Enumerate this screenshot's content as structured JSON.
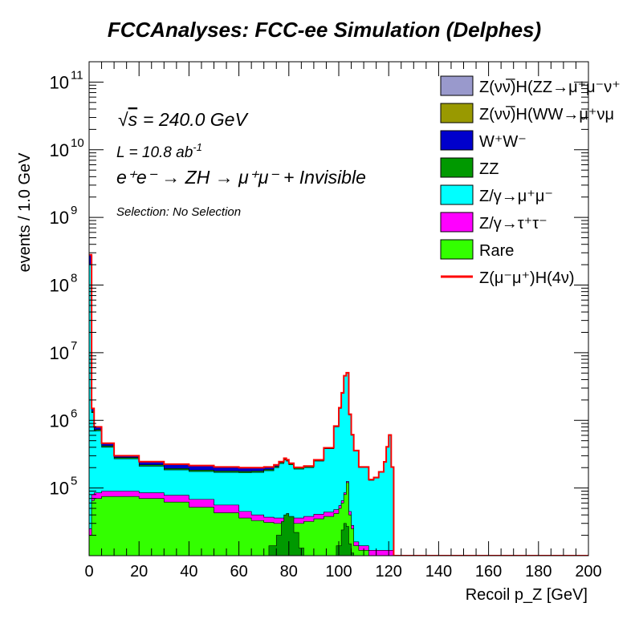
{
  "chart_data": {
    "type": "area",
    "title": "FCCAnalyses: FCC-ee Simulation (Delphes)",
    "xlabel": "Recoil p_Z [GeV]",
    "ylabel": "events / 1.0 GeV",
    "xlim": [
      0,
      200
    ],
    "ylim": [
      10000,
      200000000000
    ],
    "y_scale": "log",
    "grid": false,
    "legend_position": "top-right",
    "annotations": {
      "sqrt_s": "= 240.0 GeV",
      "lumi": "L = 10.8 ab",
      "lumi_exp": "-1",
      "process": "e⁺e⁻ → ZH → μ⁺μ⁻ + Invisible",
      "selection": "Selection: No Selection"
    },
    "x_ticks": [
      "0",
      "20",
      "40",
      "60",
      "80",
      "100",
      "120",
      "140",
      "160",
      "180",
      "200"
    ],
    "y_ticks": [
      {
        "base": "10",
        "exp": "5",
        "value": 100000
      },
      {
        "base": "10",
        "exp": "6",
        "value": 1000000
      },
      {
        "base": "10",
        "exp": "7",
        "value": 10000000
      },
      {
        "base": "10",
        "exp": "8",
        "value": 100000000
      },
      {
        "base": "10",
        "exp": "9",
        "value": 1000000000
      },
      {
        "base": "10",
        "exp": "10",
        "value": 10000000000
      },
      {
        "base": "10",
        "exp": "11",
        "value": 100000000000
      }
    ],
    "x": [
      0,
      1,
      2,
      5,
      10,
      20,
      30,
      40,
      50,
      60,
      65,
      70,
      74,
      76,
      78,
      79,
      80,
      82,
      86,
      90,
      94,
      98,
      100,
      101,
      102,
      103,
      104,
      105,
      106,
      108,
      112,
      114,
      116,
      118,
      119,
      120,
      121,
      122,
      123,
      130,
      200
    ],
    "series": [
      {
        "name": "Rare",
        "color": "#33ff00",
        "values": [
          20000,
          65000,
          70000,
          75000,
          75000,
          70000,
          62000,
          52000,
          43000,
          36000,
          33000,
          31000,
          30000,
          30000,
          30000,
          30000,
          30000,
          30000,
          32000,
          35000,
          38000,
          42000,
          50000,
          60000,
          80000,
          120000,
          40000,
          25000,
          14000,
          12000,
          10000,
          10000,
          10000,
          10000,
          10000,
          10000,
          10000,
          10000,
          10000,
          10000,
          10000
        ]
      },
      {
        "name": "Z/γ→τ⁺τ⁻",
        "color": "#ff00ff",
        "values": [
          25000,
          80000,
          85000,
          90000,
          90000,
          85000,
          78000,
          68000,
          56000,
          45000,
          40000,
          37000,
          36000,
          36000,
          36000,
          36000,
          36000,
          36000,
          38000,
          41000,
          44000,
          48000,
          55000,
          65000,
          85000,
          125000,
          45000,
          28000,
          16000,
          14000,
          12000,
          12000,
          12000,
          12000,
          12000,
          12000,
          12000,
          10000,
          10000,
          10000,
          10000
        ]
      },
      {
        "name": "Z/γ→μ⁺μ⁻",
        "color": "#00ffff",
        "values": [
          200000000,
          1300000,
          700000,
          400000,
          270000,
          210000,
          185000,
          175000,
          170000,
          168000,
          170000,
          180000,
          200000,
          230000,
          260000,
          250000,
          220000,
          190000,
          200000,
          250000,
          380000,
          800000,
          1500000,
          2500000,
          4500000,
          5000000,
          1200000,
          600000,
          350000,
          200000,
          130000,
          140000,
          170000,
          240000,
          400000,
          600000,
          200000,
          10000,
          10000,
          10000,
          10000
        ]
      },
      {
        "name": "ZZ",
        "color": "#009900",
        "values": [
          200000000,
          1350000,
          730000,
          420000,
          282000,
          220000,
          194000,
          184000,
          178000,
          176000,
          178000,
          188000,
          208000,
          238000,
          268000,
          258000,
          228000,
          198000,
          208000,
          258000,
          390000,
          820000,
          1530000,
          2550000,
          4550000,
          5050000,
          1220000,
          610000,
          355000,
          203000,
          132000,
          142000,
          172000,
          243000,
          405000,
          605000,
          203000,
          10000,
          10000,
          10000,
          10000
        ]
      },
      {
        "name": "W⁺W⁻",
        "color": "#0000cc",
        "values": [
          280000000,
          1500000,
          800000,
          460000,
          300000,
          245000,
          225000,
          215000,
          205000,
          200000,
          200000,
          205000,
          220000,
          245000,
          275000,
          262000,
          232000,
          202000,
          211000,
          261000,
          393000,
          823000,
          1535000,
          2560000,
          4560000,
          5060000,
          1230000,
          615000,
          358000,
          205000,
          133000,
          143000,
          173000,
          244000,
          407000,
          607000,
          204000,
          10000,
          10000,
          10000,
          10000
        ]
      },
      {
        "name": "Z(νν̅)H(WW→μ⁺νμ⁻ν)",
        "color": "#999900",
        "values": [
          280000000,
          1500000,
          800000,
          460000,
          300000,
          245000,
          225000,
          215000,
          205000,
          200000,
          200000,
          205000,
          220000,
          245000,
          275000,
          262000,
          232000,
          202000,
          211000,
          261000,
          393000,
          823000,
          1535000,
          2560000,
          4560000,
          5060000,
          1230000,
          615000,
          358000,
          205000,
          133000,
          143000,
          173000,
          244000,
          407000,
          607000,
          204000,
          10000,
          10000,
          10000,
          10000
        ]
      },
      {
        "name": "Z(νν̅)H(ZZ→μ⁺μ⁻νν)",
        "color": "#9999cc",
        "values": [
          280000000,
          1500000,
          800000,
          460000,
          300000,
          245000,
          225000,
          215000,
          205000,
          200000,
          200000,
          205000,
          220000,
          245000,
          275000,
          262000,
          232000,
          202000,
          211000,
          261000,
          393000,
          823000,
          1535000,
          2560000,
          4560000,
          5060000,
          1230000,
          615000,
          358000,
          205000,
          133000,
          143000,
          173000,
          244000,
          407000,
          607000,
          204000,
          10000,
          10000,
          10000,
          10000
        ]
      },
      {
        "name": "Z(μ⁻μ⁺)H(4ν)",
        "color": "#ff0000",
        "style": "line",
        "values": [
          280000000,
          1500000,
          800000,
          460000,
          300000,
          245000,
          225000,
          215000,
          205000,
          200000,
          200000,
          205000,
          220000,
          245000,
          275000,
          262000,
          232000,
          202000,
          211000,
          261000,
          393000,
          823000,
          1535000,
          2560000,
          4560000,
          5060000,
          1230000,
          615000,
          358000,
          205000,
          133000,
          143000,
          173000,
          244000,
          407000,
          607000,
          204000,
          10000,
          10000,
          10000,
          10000
        ]
      }
    ],
    "zz_peaks": {
      "name": "ZZ",
      "color": "#009900",
      "x": [
        68,
        72,
        75,
        77,
        78,
        79,
        80,
        82,
        84,
        86,
        96,
        99,
        101,
        102,
        103,
        104,
        105,
        106
      ],
      "values": [
        10000,
        14000,
        20000,
        32000,
        40000,
        42000,
        38000,
        22000,
        13000,
        10000,
        10000,
        14000,
        24000,
        30000,
        27000,
        15000,
        11000,
        10000
      ]
    },
    "legend": [
      {
        "label": "Z(νν̅)H(ZZ→μ⁺μ⁻ν⁺",
        "color": "#9999cc",
        "type": "box"
      },
      {
        "label": "Z(νν̅)H(WW→μ⁺νμ",
        "color": "#999900",
        "type": "box"
      },
      {
        "label": "W⁺W⁻",
        "color": "#0000cc",
        "type": "box"
      },
      {
        "label": "ZZ",
        "color": "#009900",
        "type": "box"
      },
      {
        "label": "Z/γ→μ⁺μ⁻",
        "color": "#00ffff",
        "type": "box"
      },
      {
        "label": "Z/γ→τ⁺τ⁻",
        "color": "#ff00ff",
        "type": "box"
      },
      {
        "label": "Rare",
        "color": "#33ff00",
        "type": "box"
      },
      {
        "label": "Z(μ⁻μ⁺)H(4ν)",
        "color": "#ff0000",
        "type": "line"
      }
    ]
  }
}
